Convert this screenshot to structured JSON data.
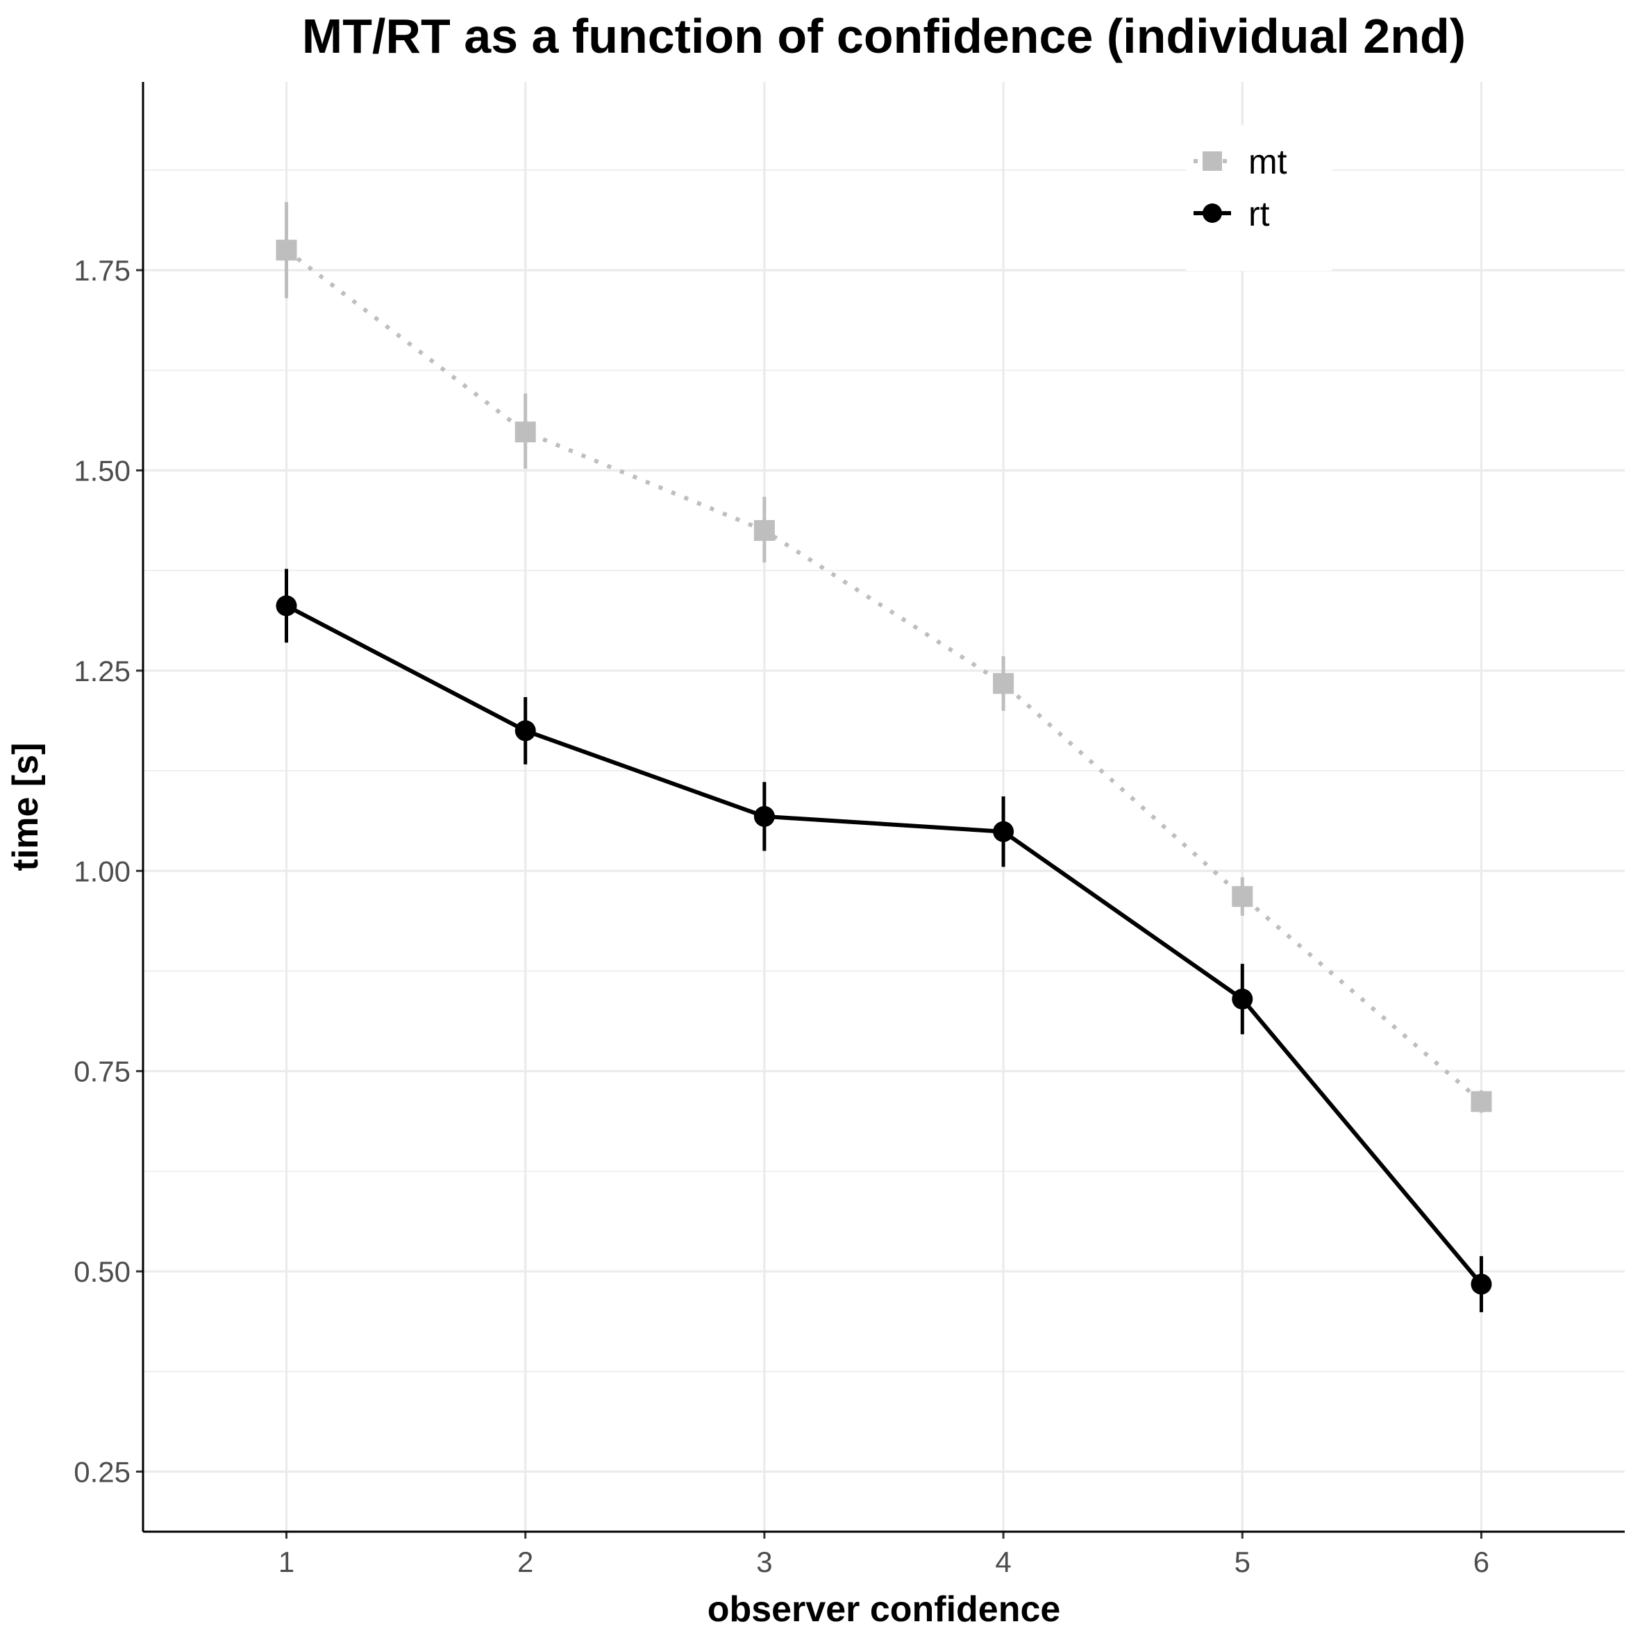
{
  "chart_data": {
    "type": "line",
    "title": "MT/RT as a function of confidence (individual 2nd)",
    "xlabel": "observer confidence",
    "ylabel": "time [s]",
    "x": [
      1,
      2,
      3,
      4,
      5,
      6
    ],
    "xlim": [
      0.4,
      6.6
    ],
    "ylim": [
      0.175,
      1.985
    ],
    "x_ticks": [
      "1",
      "2",
      "3",
      "4",
      "5",
      "6"
    ],
    "y_ticks": [
      "0.25",
      "0.50",
      "0.75",
      "1.00",
      "1.25",
      "1.50",
      "1.75"
    ],
    "grid": true,
    "legend_position": "top-right",
    "series": [
      {
        "name": "mt",
        "color": "#bebebe",
        "marker": "square",
        "line_style": "dotted",
        "values": [
          1.775,
          1.548,
          1.425,
          1.234,
          0.968,
          0.712
        ],
        "error_low": [
          1.715,
          1.502,
          1.385,
          1.2,
          0.944,
          0.698
        ],
        "error_high": [
          1.835,
          1.596,
          1.467,
          1.268,
          0.992,
          0.726
        ]
      },
      {
        "name": "rt",
        "color": "#000000",
        "marker": "circle",
        "line_style": "solid",
        "values": [
          1.331,
          1.175,
          1.068,
          1.049,
          0.84,
          0.484
        ],
        "error_low": [
          1.285,
          1.133,
          1.025,
          1.005,
          0.796,
          0.449
        ],
        "error_high": [
          1.377,
          1.217,
          1.111,
          1.093,
          0.884,
          0.519
        ]
      }
    ]
  }
}
